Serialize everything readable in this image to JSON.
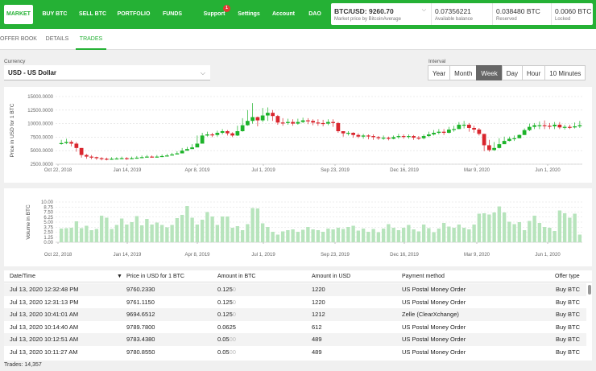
{
  "nav": {
    "items": [
      {
        "label": "MARKET"
      },
      {
        "label": "BUY BTC"
      },
      {
        "label": "SELL BTC"
      },
      {
        "label": "PORTFOLIO"
      },
      {
        "label": "FUNDS"
      },
      {
        "label": "Support",
        "badge": "1"
      },
      {
        "label": "Settings"
      },
      {
        "label": "Account"
      },
      {
        "label": "DAO"
      }
    ]
  },
  "price_box": {
    "market_price": "BTC/USD: 9260.70",
    "market_label": "Market price by BitcoinAverage",
    "available": "0.07356221",
    "available_label": "Available balance",
    "reserved": "0.038480 BTC",
    "reserved_label": "Reserved",
    "locked": "0.0060 BTC",
    "locked_label": "Locked"
  },
  "subtabs": [
    "OFFER BOOK",
    "DETAILS",
    "TRADES"
  ],
  "currency": {
    "label": "Currency",
    "value": "USD - US Dollar"
  },
  "interval": {
    "label": "Interval",
    "options": [
      "Year",
      "Month",
      "Week",
      "Day",
      "Hour",
      "10 Minutes"
    ],
    "selected": "Week"
  },
  "chart_data": [
    {
      "type": "candlestick",
      "ylabel": "Price in USD for 1 BTC",
      "ylim": [
        2500,
        15000
      ],
      "yticks": [
        "15000.0000",
        "12500.0000",
        "10000.0000",
        "7500.0000",
        "5000.0000",
        "2500.0000"
      ],
      "xticks": [
        "Oct 22, 2018",
        "Jan 14, 2019",
        "Apr 8, 2019",
        "Jul 1, 2019",
        "Sep 23, 2019",
        "Dec 16, 2019",
        "Mar 9, 2020",
        "Jun 1, 2020"
      ],
      "up_color": "#1db32a",
      "down_color": "#d9262e",
      "close": [
        6400,
        6600,
        6300,
        5500,
        4200,
        3900,
        3800,
        3600,
        3500,
        3400,
        3500,
        3550,
        3600,
        3500,
        3600,
        3700,
        3800,
        3900,
        3850,
        3900,
        4000,
        4100,
        4300,
        4500,
        5000,
        5300,
        5600,
        6300,
        7800,
        8000,
        7900,
        8300,
        8600,
        8200,
        7800,
        8600,
        9700,
        10500,
        11200,
        10600,
        11500,
        12000,
        11400,
        10200,
        10100,
        10300,
        10000,
        10300,
        10600,
        10500,
        10200,
        10100,
        10000,
        10300,
        10100,
        8600,
        8200,
        8300,
        7900,
        7600,
        7800,
        7700,
        7500,
        7300,
        7400,
        7200,
        7500,
        7700,
        7600,
        7700,
        7400,
        7300,
        7700,
        8000,
        8300,
        8500,
        8300,
        8900,
        9000,
        9800,
        9800,
        9200,
        8900,
        8100,
        6000,
        5100,
        5500,
        6200,
        6800,
        7200,
        7300,
        7900,
        8800,
        9400,
        9700,
        9700,
        9600,
        9500,
        9800,
        9300,
        9400,
        9300,
        9500,
        9700
      ],
      "wick_high": [
        7000,
        7200,
        6900,
        6600,
        5500,
        4400,
        4200,
        3900,
        3800,
        3700,
        3800,
        3800,
        3900,
        3800,
        3900,
        4000,
        4100,
        4200,
        4100,
        4200,
        4300,
        4400,
        4600,
        4900,
        5500,
        5700,
        6200,
        7800,
        8300,
        8500,
        8300,
        8700,
        9000,
        8800,
        8400,
        9600,
        11000,
        12500,
        13800,
        11300,
        12900,
        13000,
        12500,
        11600,
        11000,
        10900,
        10800,
        10900,
        11100,
        11000,
        10800,
        10800,
        10700,
        10800,
        10800,
        10300,
        8600,
        8600,
        8400,
        8200,
        8100,
        8000,
        8000,
        7700,
        7800,
        7600,
        7800,
        8100,
        8000,
        8000,
        7900,
        7700,
        8000,
        8500,
        8800,
        9000,
        9000,
        9400,
        9600,
        10300,
        10500,
        10100,
        9600,
        9200,
        8100,
        7000,
        6600,
        7300,
        7600,
        7600,
        7800,
        8000,
        9100,
        10000,
        10100,
        10400,
        10600,
        10100,
        10300,
        10300,
        9800,
        9800,
        10200,
        10500
      ],
      "wick_low": [
        6100,
        6200,
        5800,
        4800,
        3700,
        3500,
        3400,
        3300,
        3200,
        3200,
        3300,
        3400,
        3400,
        3300,
        3400,
        3500,
        3600,
        3700,
        3700,
        3700,
        3800,
        3900,
        4100,
        4300,
        4600,
        5000,
        5300,
        5800,
        6600,
        7600,
        7500,
        7600,
        8000,
        7800,
        7500,
        7700,
        8500,
        9600,
        10000,
        9500,
        10300,
        10500,
        10500,
        9800,
        9600,
        9800,
        9600,
        9800,
        10100,
        9900,
        9700,
        9600,
        9500,
        9700,
        9400,
        8300,
        7600,
        7800,
        7400,
        7300,
        7200,
        7100,
        7000,
        7000,
        7000,
        6900,
        7100,
        7200,
        7200,
        7200,
        7000,
        7000,
        7100,
        7500,
        7800,
        8000,
        7900,
        8200,
        8500,
        9000,
        9100,
        8500,
        8300,
        7800,
        4900,
        4800,
        5000,
        5400,
        6400,
        6700,
        6800,
        7300,
        7900,
        8600,
        9000,
        9000,
        9000,
        9000,
        9000,
        9000,
        8900,
        9000,
        9100,
        9200
      ]
    },
    {
      "type": "bar",
      "ylabel": "Volume in BTC",
      "ylim": [
        0,
        10
      ],
      "yticks": [
        "10.00",
        "8.75",
        "7.50",
        "6.25",
        "5.00",
        "3.75",
        "2.50",
        "1.25",
        "0.00"
      ],
      "xticks": [
        "Oct 22, 2018",
        "Jan 14, 2019",
        "Apr 8, 2019",
        "Jul 1, 2019",
        "Sep 23, 2019",
        "Dec 16, 2019",
        "Mar 9, 2020",
        "Jun 1, 2020"
      ],
      "bar_color": "#b7e4bc",
      "values": [
        3.4,
        3.5,
        3.6,
        5.2,
        3.5,
        4.1,
        3.0,
        3.3,
        6.6,
        6.1,
        3.3,
        4.3,
        5.9,
        4.4,
        5.0,
        6.5,
        4.2,
        5.8,
        4.4,
        4.9,
        4.3,
        3.7,
        4.3,
        6.0,
        6.8,
        9.0,
        6.1,
        4.4,
        5.6,
        7.5,
        6.4,
        4.3,
        6.4,
        6.4,
        3.6,
        4.0,
        3.0,
        4.5,
        8.5,
        8.4,
        4.7,
        3.8,
        2.6,
        1.9,
        2.7,
        3.0,
        3.2,
        2.6,
        3.1,
        3.8,
        3.2,
        3.0,
        2.6,
        3.4,
        3.2,
        3.6,
        3.3,
        3.8,
        4.1,
        2.9,
        3.4,
        2.6,
        3.3,
        2.5,
        3.4,
        4.5,
        3.6,
        3.0,
        3.6,
        4.3,
        3.2,
        2.7,
        4.4,
        3.5,
        2.5,
        3.4,
        4.8,
        3.9,
        3.6,
        4.4,
        3.6,
        3.2,
        4.4,
        7.1,
        7.2,
        6.9,
        7.4,
        8.9,
        7.4,
        5.1,
        4.5,
        5.0,
        3.0,
        5.3,
        6.6,
        4.8,
        3.8,
        3.6,
        2.8,
        7.9,
        7.2,
        6.1,
        7.1,
        1.9
      ]
    }
  ],
  "table": {
    "headers": [
      "Date/Time",
      "Price in USD for 1 BTC",
      "Amount in BTC",
      "Amount in USD",
      "Payment method",
      "Offer type"
    ],
    "rows": [
      {
        "date": "Jul 13, 2020 12:32:48 PM",
        "price": "9760.2330",
        "btc": "0.125",
        "btc_pad": "0",
        "usd": "1220",
        "method": "US Postal Money Order",
        "type": "Buy BTC"
      },
      {
        "date": "Jul 13, 2020 12:31:13 PM",
        "price": "9761.1150",
        "btc": "0.125",
        "btc_pad": "0",
        "usd": "1220",
        "method": "US Postal Money Order",
        "type": "Buy BTC"
      },
      {
        "date": "Jul 13, 2020 10:41:01 AM",
        "price": "9694.6512",
        "btc": "0.125",
        "btc_pad": "0",
        "usd": "1212",
        "method": "Zelle (ClearXchange)",
        "type": "Buy BTC"
      },
      {
        "date": "Jul 13, 2020 10:14:40 AM",
        "price": "9789.7800",
        "btc": "0.0625",
        "btc_pad": "",
        "usd": "612",
        "method": "US Postal Money Order",
        "type": "Buy BTC"
      },
      {
        "date": "Jul 13, 2020 10:12:51 AM",
        "price": "9783.4380",
        "btc": "0.05",
        "btc_pad": "00",
        "usd": "489",
        "method": "US Postal Money Order",
        "type": "Buy BTC"
      },
      {
        "date": "Jul 13, 2020 10:11:27 AM",
        "price": "9780.8550",
        "btc": "0.05",
        "btc_pad": "00",
        "usd": "489",
        "method": "US Postal Money Order",
        "type": "Buy BTC"
      }
    ]
  },
  "footer": "Trades: 14,357"
}
